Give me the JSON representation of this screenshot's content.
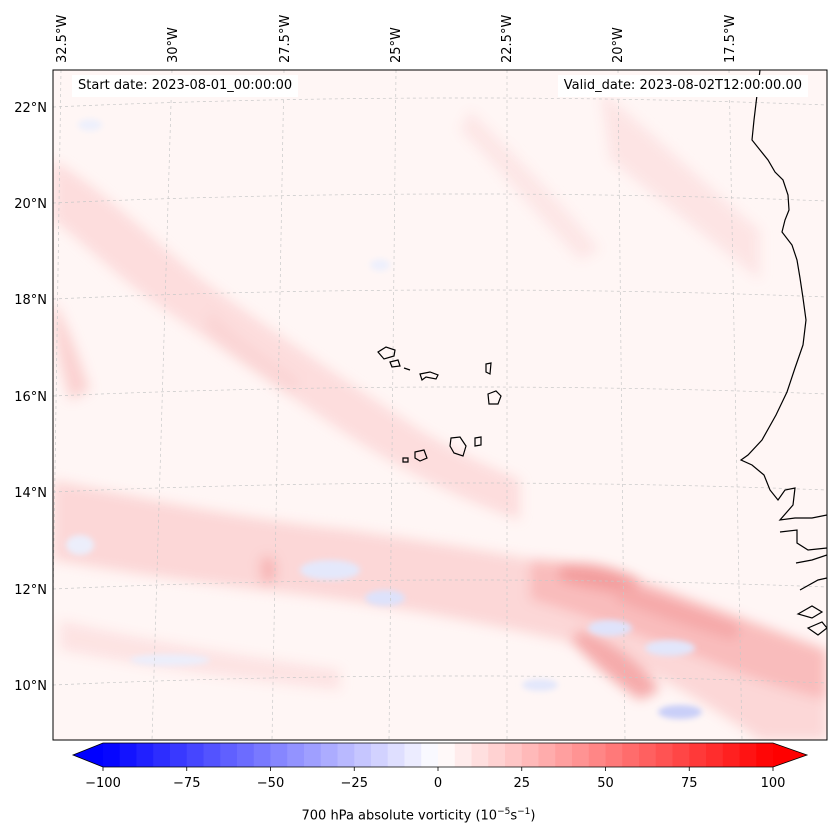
{
  "map": {
    "start_date": "Start date: 2023-08-01_00:00:00",
    "valid_date": "Valid_date: 2023-08-02T12:00:00.00",
    "longitude_labels": [
      "32.5°W",
      "30°W",
      "27.5°W",
      "25°W",
      "22.5°W",
      "20°W",
      "17.5°W"
    ],
    "latitude_labels": [
      "22°N",
      "20°N",
      "18°N",
      "16°N",
      "14°N",
      "12°N",
      "10°N"
    ],
    "field": "700 hPa absolute vorticity",
    "region": "Cabo Verde islands and West African coast"
  },
  "colorbar": {
    "label_text": "700 hPa absolute vorticity (10",
    "label_exp1": "−5",
    "label_mid": "s",
    "label_exp2": "−1",
    "label_close": ")",
    "min": -100,
    "max": 100,
    "step": 5,
    "ticks": [
      "−100",
      "−75",
      "−50",
      "−25",
      "0",
      "25",
      "50",
      "75",
      "100"
    ],
    "low_color": "#0000ff",
    "mid_color": "#ffffff",
    "high_color": "#ff0000"
  }
}
